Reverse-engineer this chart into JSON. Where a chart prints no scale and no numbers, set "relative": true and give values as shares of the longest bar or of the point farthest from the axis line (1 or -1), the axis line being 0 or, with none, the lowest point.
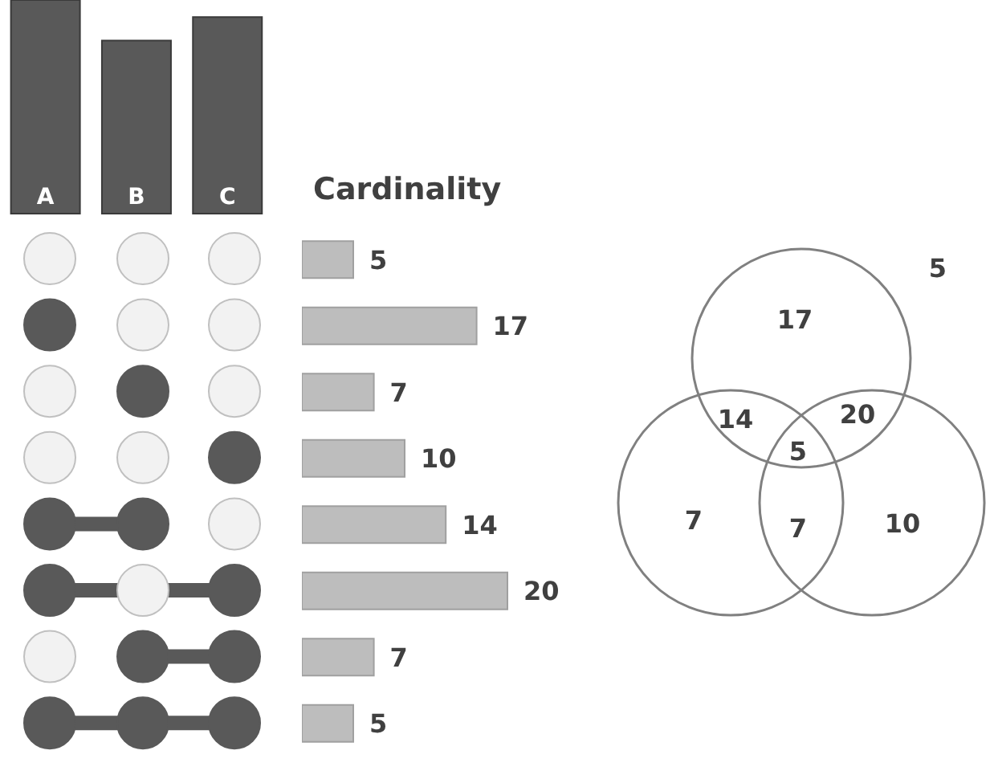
{
  "chart_data": [
    {
      "type": "bar",
      "categories": [
        "A",
        "B",
        "C"
      ],
      "values": [
        1,
        0.81,
        0.92
      ],
      "color": "#595959",
      "relative": true
    },
    {
      "type": "bar",
      "orientation": "horizontal",
      "title": "Cardinality",
      "categories": [
        null,
        null,
        null,
        null,
        null,
        null,
        null,
        null
      ],
      "values": [
        5,
        17,
        7,
        10,
        14,
        20,
        7,
        5
      ],
      "color": "#bdbdbd",
      "data_labels": true
    },
    {
      "type": "other",
      "annotations": [
        "5",
        "17",
        "7",
        "10",
        "14",
        "20",
        "7",
        "5"
      ]
    }
  ]
}
